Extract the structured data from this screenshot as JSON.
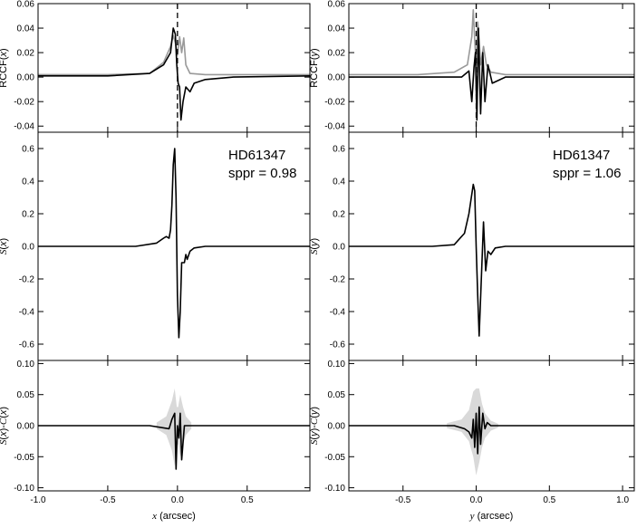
{
  "chart_data": [
    {
      "type": "line",
      "panel": "RCCF(x)",
      "ylabel": "RCCF(x)",
      "ylim": [
        -0.045,
        0.06
      ],
      "xlim": [
        -1.0,
        0.95
      ],
      "yticks": [
        -0.04,
        -0.02,
        0.0,
        0.02,
        0.04,
        0.06
      ],
      "ytick_labels": [
        "-0.04",
        "-0.02",
        "0.00",
        "0.02",
        "0.04",
        "0.06"
      ],
      "vline_x": 0.0,
      "series": [
        {
          "color": "#999999",
          "x": [
            -1.0,
            -0.5,
            -0.2,
            -0.1,
            -0.05,
            -0.03,
            -0.015,
            0.0,
            0.015,
            0.03,
            0.045,
            0.06,
            0.09,
            0.2,
            0.5,
            0.95
          ],
          "y": [
            0.002,
            0.002,
            0.003,
            0.012,
            0.025,
            0.034,
            0.028,
            0.018,
            0.033,
            0.02,
            0.032,
            0.01,
            0.003,
            0.002,
            0.002,
            0.002
          ]
        },
        {
          "color": "#000000",
          "x": [
            -1.0,
            -0.5,
            -0.2,
            -0.1,
            -0.05,
            -0.03,
            -0.015,
            -0.005,
            0.005,
            0.015,
            0.025,
            0.04,
            0.06,
            0.09,
            0.12,
            0.2,
            0.4,
            0.95
          ],
          "y": [
            0.001,
            0.001,
            0.003,
            0.01,
            0.02,
            0.04,
            0.035,
            0.01,
            -0.005,
            -0.008,
            -0.035,
            -0.02,
            -0.008,
            -0.012,
            -0.005,
            -0.002,
            0.0,
            0.001
          ]
        }
      ]
    },
    {
      "type": "line",
      "panel": "RCCF(y)",
      "ylabel": "RCCF(y)",
      "ylim": [
        -0.045,
        0.06
      ],
      "xlim": [
        -0.87,
        1.08
      ],
      "yticks": [
        -0.04,
        -0.02,
        0.0,
        0.02,
        0.04,
        0.06
      ],
      "ytick_labels": [
        "-0.04",
        "-0.02",
        "0.00",
        "0.02",
        "0.04",
        "0.06"
      ],
      "vline_x": 0.0,
      "series": [
        {
          "color": "#999999",
          "x": [
            -0.87,
            -0.4,
            -0.15,
            -0.06,
            -0.03,
            -0.02,
            -0.01,
            0.0,
            0.01,
            0.02,
            0.03,
            0.05,
            0.07,
            0.1,
            0.2,
            0.5,
            1.08
          ],
          "y": [
            0.002,
            0.002,
            0.004,
            0.01,
            0.033,
            0.055,
            0.03,
            0.01,
            0.045,
            0.03,
            0.01,
            0.025,
            0.01,
            0.004,
            0.002,
            0.002,
            0.002
          ]
        },
        {
          "color": "#000000",
          "x": [
            -0.87,
            -0.4,
            -0.1,
            -0.05,
            -0.03,
            -0.015,
            -0.005,
            0.005,
            0.015,
            0.03,
            0.045,
            0.06,
            0.08,
            0.11,
            0.2,
            0.5,
            1.08
          ],
          "y": [
            0.0,
            0.0,
            0.0,
            0.005,
            -0.02,
            0.008,
            0.02,
            -0.035,
            0.04,
            -0.03,
            0.02,
            -0.02,
            0.01,
            -0.005,
            0.0,
            0.0,
            0.0
          ]
        }
      ]
    },
    {
      "type": "line",
      "panel": "S(x)",
      "ylabel": "S(x)",
      "ylim": [
        -0.7,
        0.7
      ],
      "xlim": [
        -1.0,
        0.95
      ],
      "yticks": [
        -0.6,
        -0.4,
        -0.2,
        0.0,
        0.2,
        0.4,
        0.6
      ],
      "ytick_labels": [
        "-0.6",
        "-0.4",
        "-0.2",
        "0.0",
        "0.2",
        "0.4",
        "0.6"
      ],
      "annotation": [
        "HD61347",
        "sppr = 0.98"
      ],
      "series": [
        {
          "color": "#000000",
          "x": [
            -1.0,
            -0.3,
            -0.15,
            -0.1,
            -0.08,
            -0.06,
            -0.05,
            -0.04,
            -0.03,
            -0.02,
            -0.01,
            0.0,
            0.01,
            0.02,
            0.03,
            0.05,
            0.06,
            0.07,
            0.09,
            0.12,
            0.2,
            0.95
          ],
          "y": [
            0.0,
            0.0,
            0.02,
            0.05,
            0.06,
            0.05,
            0.1,
            0.25,
            0.5,
            0.6,
            0.3,
            -0.3,
            -0.56,
            -0.4,
            -0.1,
            -0.1,
            -0.05,
            -0.08,
            -0.03,
            -0.01,
            0.0,
            0.0
          ]
        }
      ]
    },
    {
      "type": "line",
      "panel": "S(y)",
      "ylabel": "S(y)",
      "ylim": [
        -0.7,
        0.7
      ],
      "xlim": [
        -0.87,
        1.08
      ],
      "yticks": [
        -0.6,
        -0.4,
        -0.2,
        0.0,
        0.2,
        0.4,
        0.6
      ],
      "ytick_labels": [
        "-0.6",
        "-0.4",
        "-0.2",
        "0.0",
        "0.2",
        "0.4",
        "0.6"
      ],
      "annotation": [
        "HD61347",
        "sppr = 1.06"
      ],
      "series": [
        {
          "color": "#000000",
          "x": [
            -0.87,
            -0.3,
            -0.15,
            -0.08,
            -0.05,
            -0.03,
            -0.02,
            -0.01,
            0.0,
            0.01,
            0.02,
            0.035,
            0.05,
            0.065,
            0.08,
            0.1,
            0.13,
            0.2,
            1.08
          ],
          "y": [
            0.0,
            0.0,
            0.01,
            0.08,
            0.2,
            0.32,
            0.38,
            0.34,
            0.0,
            -0.3,
            -0.55,
            -0.2,
            0.15,
            -0.15,
            -0.03,
            -0.05,
            -0.01,
            0.0,
            0.0
          ]
        }
      ]
    },
    {
      "type": "area",
      "panel": "S(x)-C(x)",
      "ylabel": "S(x)-C(x)",
      "xlabel": "x (arcsec)",
      "ylim": [
        -0.105,
        0.105
      ],
      "xlim": [
        -1.0,
        0.95
      ],
      "yticks": [
        -0.1,
        -0.05,
        0.0,
        0.05,
        0.1
      ],
      "ytick_labels": [
        "-0.10",
        "-0.05",
        "0.00",
        "0.05",
        "0.10"
      ],
      "xticks": [
        -1.0,
        -0.5,
        0.0,
        0.5
      ],
      "xtick_labels": [
        "-1.0",
        "-0.5",
        "0.0",
        "0.5"
      ],
      "band_color": "#d9d9d9",
      "band": {
        "x": [
          -0.15,
          -0.08,
          -0.04,
          -0.02,
          -0.005,
          0.005,
          0.02,
          0.04,
          0.06,
          0.1
        ],
        "upper": [
          0.005,
          0.015,
          0.04,
          0.06,
          0.03,
          0.03,
          0.05,
          0.03,
          0.015,
          0.005
        ],
        "lower": [
          -0.005,
          -0.015,
          -0.04,
          -0.065,
          -0.03,
          -0.03,
          -0.05,
          -0.03,
          -0.015,
          -0.005
        ]
      },
      "series": [
        {
          "color": "#000000",
          "x": [
            -1.0,
            -0.2,
            -0.06,
            -0.04,
            -0.02,
            -0.01,
            0.0,
            0.01,
            0.02,
            0.03,
            0.05,
            0.08,
            0.2,
            0.95
          ],
          "y": [
            0.0,
            0.0,
            -0.005,
            0.01,
            0.02,
            -0.07,
            0.0,
            -0.02,
            0.02,
            -0.055,
            0.0,
            0.0,
            0.0,
            0.0
          ]
        }
      ]
    },
    {
      "type": "area",
      "panel": "S(y)-C(y)",
      "ylabel": "S(y)-C(y)",
      "xlabel": "y (arcsec)",
      "ylim": [
        -0.105,
        0.105
      ],
      "xlim": [
        -0.87,
        1.08
      ],
      "yticks": [
        -0.1,
        -0.05,
        0.0,
        0.05,
        0.1
      ],
      "ytick_labels": [
        "-0.10",
        "-0.05",
        "0.00",
        "0.05",
        "0.10"
      ],
      "xticks": [
        -0.5,
        0.0,
        0.5,
        1.0
      ],
      "xtick_labels": [
        "-0.5",
        "0.0",
        "0.5",
        "1.0"
      ],
      "band_color": "#d9d9d9",
      "band": {
        "x": [
          -0.2,
          -0.1,
          -0.05,
          -0.02,
          0.0,
          0.02,
          0.04,
          0.06,
          0.1,
          0.15
        ],
        "upper": [
          0.004,
          0.01,
          0.025,
          0.055,
          0.06,
          0.06,
          0.035,
          0.02,
          0.008,
          0.003
        ],
        "lower": [
          -0.004,
          -0.01,
          -0.025,
          -0.05,
          -0.08,
          -0.06,
          -0.035,
          -0.02,
          -0.008,
          -0.003
        ]
      },
      "series": [
        {
          "color": "#000000",
          "x": [
            -0.87,
            -0.15,
            -0.08,
            -0.05,
            -0.03,
            -0.02,
            -0.01,
            0.0,
            0.01,
            0.02,
            0.03,
            0.045,
            0.06,
            0.075,
            0.1,
            0.2,
            1.08
          ],
          "y": [
            0.0,
            0.0,
            -0.005,
            -0.01,
            -0.02,
            0.01,
            -0.035,
            0.02,
            -0.045,
            0.03,
            -0.03,
            0.02,
            -0.005,
            0.005,
            0.0,
            0.0,
            0.0
          ]
        }
      ]
    }
  ]
}
